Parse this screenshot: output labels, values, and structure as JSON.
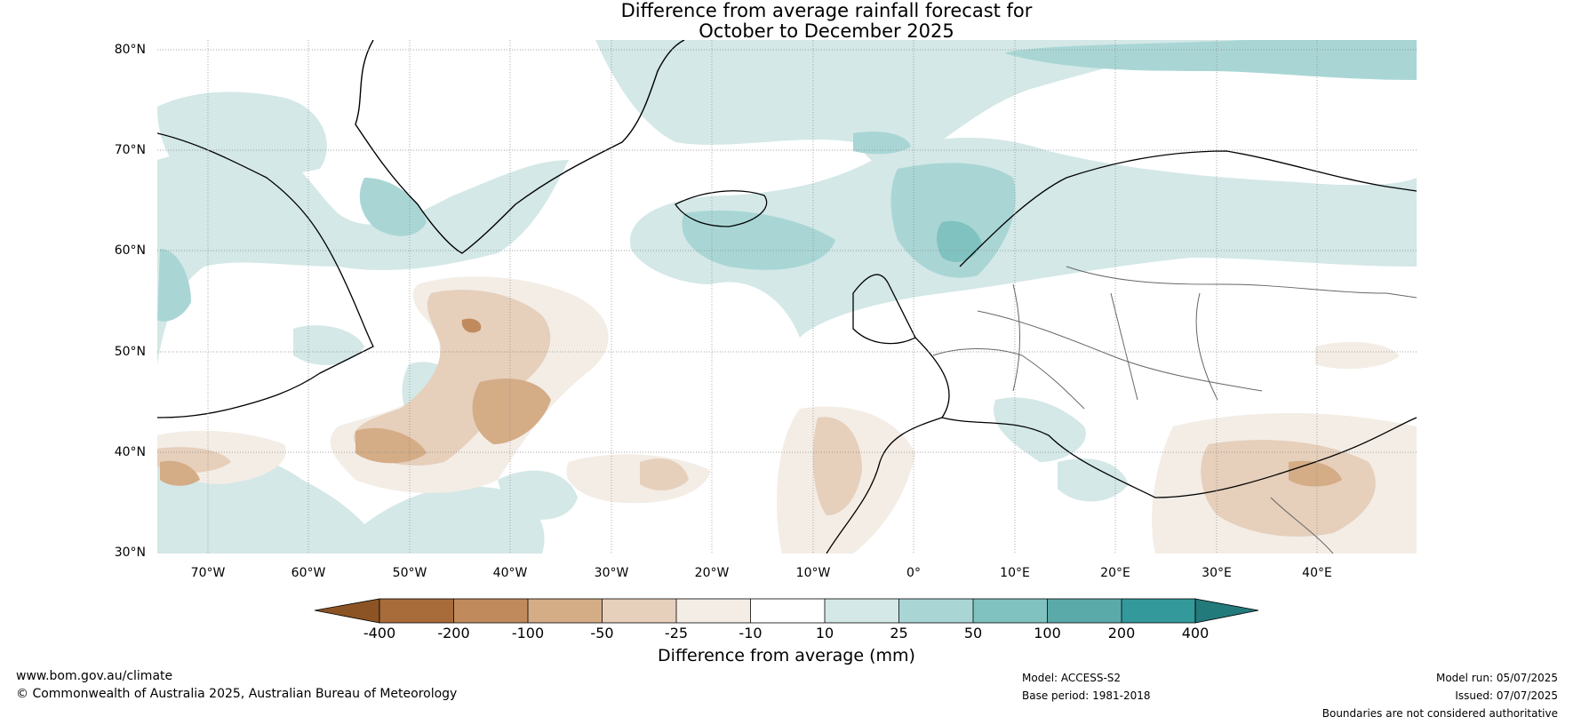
{
  "title": {
    "line1": "Difference from average rainfall forecast for",
    "line2": "October to December 2025"
  },
  "map": {
    "latitude_labels": [
      "80°N",
      "70°N",
      "60°N",
      "50°N",
      "40°N",
      "30°N"
    ],
    "longitude_labels": [
      "70°W",
      "60°W",
      "50°W",
      "40°W",
      "30°W",
      "20°W",
      "10°W",
      "0°",
      "10°E",
      "20°E",
      "30°E",
      "40°E"
    ]
  },
  "colorbar": {
    "ticks": [
      "-400",
      "-200",
      "-100",
      "-50",
      "-25",
      "-10",
      "10",
      "25",
      "50",
      "100",
      "200",
      "400"
    ],
    "label": "Difference from average (mm)",
    "colors": {
      "below_min": "#8c5424",
      "c1": "#a86c3a",
      "c2": "#c08a5c",
      "c3": "#d4ac86",
      "c4": "#e6cfbb",
      "c5": "#f3ede6",
      "c6": "#ffffff",
      "c7": "#d3e8e7",
      "c8": "#a9d6d5",
      "c9": "#80c2c0",
      "c10": "#5aaaa9",
      "c11": "#33999a",
      "above_max": "#237a7b"
    }
  },
  "footer": {
    "website": "www.bom.gov.au/climate",
    "copyright": "© Commonwealth of Australia 2025, Australian Bureau of Meteorology",
    "model": "Model: ACCESS-S2",
    "base_period": "Base period: 1981-2018",
    "model_run": "Model run: 05/07/2025",
    "issued": "Issued: 07/07/2025",
    "disclaimer": "Boundaries are not considered authoritative"
  }
}
